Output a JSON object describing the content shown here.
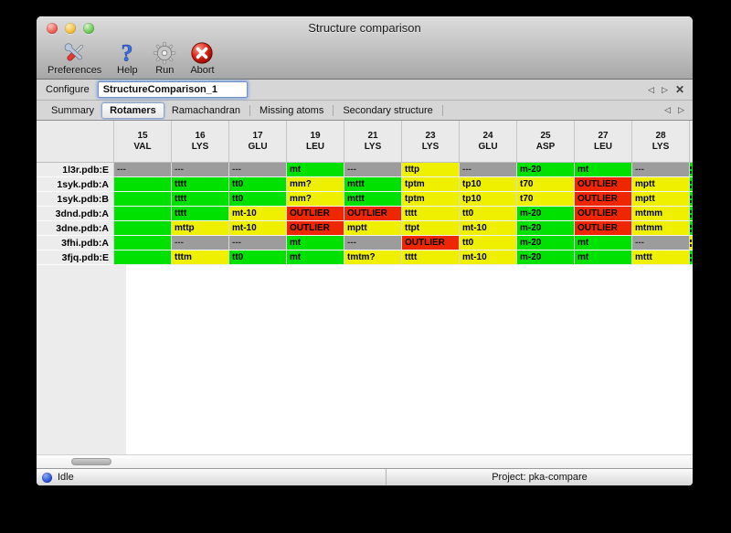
{
  "window": {
    "title": "Structure comparison"
  },
  "toolbar": {
    "buttons": [
      {
        "label": "Preferences",
        "icon": "preferences-tools-icon"
      },
      {
        "label": "Help",
        "icon": "help-question-icon"
      },
      {
        "label": "Run",
        "icon": "run-gear-icon"
      },
      {
        "label": "Abort",
        "icon": "abort-icon"
      }
    ]
  },
  "configure": {
    "label": "Configure",
    "value": "StructureComparison_1"
  },
  "nav": {
    "back": "◁",
    "forward": "▷",
    "close": "✕"
  },
  "tabs": {
    "items": [
      {
        "label": "Summary",
        "selected": false
      },
      {
        "label": "Rotamers",
        "selected": true
      },
      {
        "label": "Ramachandran",
        "selected": false
      },
      {
        "label": "Missing atoms",
        "selected": false
      },
      {
        "label": "Secondary structure",
        "selected": false
      }
    ]
  },
  "table": {
    "columns": [
      {
        "number": "15",
        "residue": "VAL"
      },
      {
        "number": "16",
        "residue": "LYS"
      },
      {
        "number": "17",
        "residue": "GLU"
      },
      {
        "number": "19",
        "residue": "LEU"
      },
      {
        "number": "21",
        "residue": "LYS"
      },
      {
        "number": "23",
        "residue": "LYS"
      },
      {
        "number": "24",
        "residue": "GLU"
      },
      {
        "number": "25",
        "residue": "ASP"
      },
      {
        "number": "27",
        "residue": "LEU"
      },
      {
        "number": "28",
        "residue": "LYS"
      }
    ],
    "legend_colors": {
      "favored": "#00e100",
      "allowed": "#efef00",
      "outlier": "#ee2700",
      "missing": "#9c9c9c"
    },
    "rows": [
      {
        "label": "1l3r.pdb:E",
        "edge": "favored",
        "cells": [
          {
            "text": "---",
            "color": "missing"
          },
          {
            "text": "---",
            "color": "missing"
          },
          {
            "text": "---",
            "color": "missing"
          },
          {
            "text": "mt",
            "color": "favored"
          },
          {
            "text": "---",
            "color": "missing"
          },
          {
            "text": "tttp",
            "color": "allowed"
          },
          {
            "text": "---",
            "color": "missing"
          },
          {
            "text": "m-20",
            "color": "favored"
          },
          {
            "text": "mt",
            "color": "favored"
          },
          {
            "text": "---",
            "color": "missing"
          }
        ]
      },
      {
        "label": "1syk.pdb:A",
        "edge": "favored",
        "cells": [
          {
            "text": "",
            "color": "favored",
            "clipped": true
          },
          {
            "text": "tttt",
            "color": "favored"
          },
          {
            "text": "tt0",
            "color": "favored"
          },
          {
            "text": "mm?",
            "color": "allowed"
          },
          {
            "text": "mttt",
            "color": "favored"
          },
          {
            "text": "tptm",
            "color": "allowed"
          },
          {
            "text": "tp10",
            "color": "allowed"
          },
          {
            "text": "t70",
            "color": "allowed"
          },
          {
            "text": "OUTLIER",
            "color": "outlier"
          },
          {
            "text": "mptt",
            "color": "allowed"
          }
        ]
      },
      {
        "label": "1syk.pdb:B",
        "edge": "favored",
        "cells": [
          {
            "text": "",
            "color": "favored",
            "clipped": true
          },
          {
            "text": "tttt",
            "color": "favored"
          },
          {
            "text": "tt0",
            "color": "favored"
          },
          {
            "text": "mm?",
            "color": "allowed"
          },
          {
            "text": "mttt",
            "color": "favored"
          },
          {
            "text": "tptm",
            "color": "allowed"
          },
          {
            "text": "tp10",
            "color": "allowed"
          },
          {
            "text": "t70",
            "color": "allowed"
          },
          {
            "text": "OUTLIER",
            "color": "outlier"
          },
          {
            "text": "mptt",
            "color": "allowed"
          }
        ]
      },
      {
        "label": "3dnd.pdb:A",
        "edge": "favored",
        "cells": [
          {
            "text": "",
            "color": "favored",
            "clipped": true
          },
          {
            "text": "tttt",
            "color": "favored"
          },
          {
            "text": "mt-10",
            "color": "allowed"
          },
          {
            "text": "OUTLIER",
            "color": "outlier"
          },
          {
            "text": "OUTLIER",
            "color": "outlier"
          },
          {
            "text": "tttt",
            "color": "allowed"
          },
          {
            "text": "tt0",
            "color": "allowed"
          },
          {
            "text": "m-20",
            "color": "favored"
          },
          {
            "text": "OUTLIER",
            "color": "outlier"
          },
          {
            "text": "mtmm",
            "color": "allowed"
          }
        ]
      },
      {
        "label": "3dne.pdb:A",
        "edge": "favored",
        "cells": [
          {
            "text": "",
            "color": "favored",
            "clipped": true
          },
          {
            "text": "mttp",
            "color": "allowed"
          },
          {
            "text": "mt-10",
            "color": "allowed"
          },
          {
            "text": "OUTLIER",
            "color": "outlier"
          },
          {
            "text": "mptt",
            "color": "allowed"
          },
          {
            "text": "ttpt",
            "color": "allowed"
          },
          {
            "text": "mt-10",
            "color": "allowed"
          },
          {
            "text": "m-20",
            "color": "favored"
          },
          {
            "text": "OUTLIER",
            "color": "outlier"
          },
          {
            "text": "mtmm",
            "color": "allowed"
          }
        ]
      },
      {
        "label": "3fhi.pdb:A",
        "edge": "allowed",
        "cells": [
          {
            "text": "",
            "color": "favored",
            "clipped": true
          },
          {
            "text": "---",
            "color": "missing"
          },
          {
            "text": "---",
            "color": "missing"
          },
          {
            "text": "mt",
            "color": "favored"
          },
          {
            "text": "---",
            "color": "missing"
          },
          {
            "text": "OUTLIER",
            "color": "outlier"
          },
          {
            "text": "tt0",
            "color": "allowed"
          },
          {
            "text": "m-20",
            "color": "favored"
          },
          {
            "text": "mt",
            "color": "favored"
          },
          {
            "text": "---",
            "color": "missing"
          }
        ]
      },
      {
        "label": "3fjq.pdb:E",
        "edge": "favored",
        "cells": [
          {
            "text": "",
            "color": "favored",
            "clipped": true
          },
          {
            "text": "tttm",
            "color": "allowed"
          },
          {
            "text": "tt0",
            "color": "favored"
          },
          {
            "text": "mt",
            "color": "favored"
          },
          {
            "text": "tmtm?",
            "color": "allowed"
          },
          {
            "text": "tttt",
            "color": "allowed"
          },
          {
            "text": "mt-10",
            "color": "allowed"
          },
          {
            "text": "m-20",
            "color": "favored"
          },
          {
            "text": "mt",
            "color": "favored"
          },
          {
            "text": "mttt",
            "color": "allowed"
          }
        ]
      }
    ]
  },
  "statusbar": {
    "status": "Idle",
    "project": "Project: pka-compare"
  }
}
